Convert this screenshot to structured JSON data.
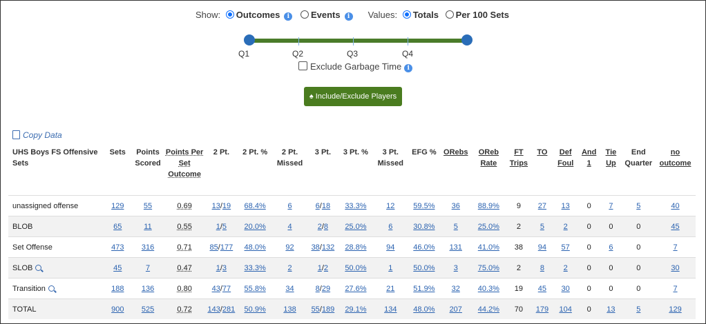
{
  "controls": {
    "show_label": "Show:",
    "show_options": [
      "Outcomes",
      "Events"
    ],
    "values_label": "Values:",
    "values_options": [
      "Totals",
      "Per 100 Sets"
    ],
    "quarters": [
      "Q1",
      "Q2",
      "Q3",
      "Q4"
    ],
    "exclude_garbage": "Exclude Garbage Time",
    "include_button": "Include/Exclude Players",
    "copy_data": "Copy Data"
  },
  "table": {
    "headers": [
      "UHS Boys FS Offensive Sets",
      "Sets",
      "Points Scored",
      "Points Per Set Outcome",
      "2 Pt.",
      "2 Pt. %",
      "2 Pt. Missed",
      "3 Pt.",
      "3 Pt. %",
      "3 Pt. Missed",
      "EFG %",
      "ORebs",
      "OReb Rate",
      "FT Trips",
      "TO",
      "Def Foul",
      "And 1",
      "Tie Up",
      "End Quarter",
      "no outcome"
    ],
    "rows": [
      [
        "unassigned offense",
        "129",
        "55",
        "0.69",
        "13",
        "19",
        "68.4%",
        "6",
        "6",
        "18",
        "33.3%",
        "12",
        "59.5%",
        "36",
        "88.9%",
        "9",
        "27",
        "13",
        "0",
        "7",
        "5",
        "40"
      ],
      [
        "BLOB",
        "65",
        "11",
        "0.55",
        "1",
        "5",
        "20.0%",
        "4",
        "2",
        "8",
        "25.0%",
        "6",
        "30.8%",
        "5",
        "25.0%",
        "2",
        "5",
        "2",
        "0",
        "0",
        "0",
        "45"
      ],
      [
        "Set Offense",
        "473",
        "316",
        "0.71",
        "85",
        "177",
        "48.0%",
        "92",
        "38",
        "132",
        "28.8%",
        "94",
        "46.0%",
        "131",
        "41.0%",
        "38",
        "94",
        "57",
        "0",
        "6",
        "0",
        "7"
      ],
      [
        "SLOB",
        "45",
        "7",
        "0.47",
        "1",
        "3",
        "33.3%",
        "2",
        "1",
        "2",
        "50.0%",
        "1",
        "50.0%",
        "3",
        "75.0%",
        "2",
        "8",
        "2",
        "0",
        "0",
        "0",
        "30"
      ],
      [
        "Transition",
        "188",
        "136",
        "0.80",
        "43",
        "77",
        "55.8%",
        "34",
        "8",
        "29",
        "27.6%",
        "21",
        "51.9%",
        "32",
        "40.3%",
        "19",
        "45",
        "30",
        "0",
        "0",
        "0",
        "7"
      ],
      [
        "TOTAL",
        "900",
        "525",
        "0.72",
        "143",
        "281",
        "50.9%",
        "138",
        "55",
        "189",
        "29.1%",
        "134",
        "48.0%",
        "207",
        "44.2%",
        "70",
        "179",
        "104",
        "0",
        "13",
        "5",
        "129"
      ]
    ]
  }
}
